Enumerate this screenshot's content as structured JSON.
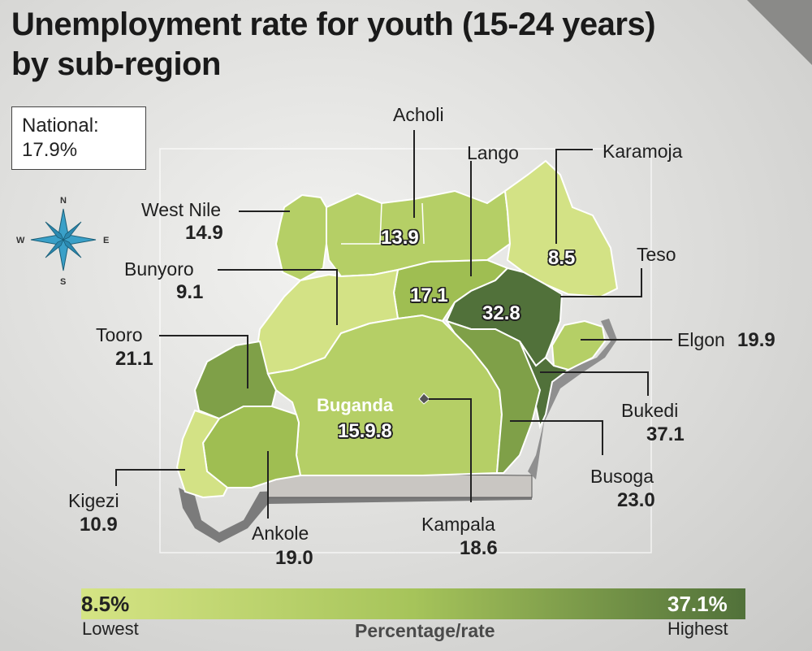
{
  "title_line1": "Unemployment rate for youth (15-24 years)",
  "title_line2": "by sub-region",
  "national": {
    "label": "National:",
    "value": "17.9%"
  },
  "compass": {
    "n": "N",
    "s": "S",
    "e": "E",
    "w": "W"
  },
  "colors": {
    "lightest": "#d3e285",
    "light": "#b5cf66",
    "mid": "#9fbe52",
    "darker": "#7fa048",
    "darkest": "#51713a"
  },
  "regions": {
    "acholi": {
      "name": "Acholi",
      "value": "13.9"
    },
    "lango": {
      "name": "Lango",
      "value": "17.1"
    },
    "karamoja": {
      "name": "Karamoja",
      "value": "8.5"
    },
    "west_nile": {
      "name": "West Nile",
      "value": "14.9"
    },
    "bunyoro": {
      "name": "Bunyoro",
      "value": "9.1"
    },
    "teso": {
      "name": "Teso",
      "value": "32.8"
    },
    "tooro": {
      "name": "Tooro",
      "value": "21.1"
    },
    "elgon": {
      "name": "Elgon",
      "value": "19.9"
    },
    "buganda": {
      "name": "Buganda",
      "value": "15.9.8"
    },
    "bukedi": {
      "name": "Bukedi",
      "value": "37.1"
    },
    "busoga": {
      "name": "Busoga",
      "value": "23.0"
    },
    "kigezi": {
      "name": "Kigezi",
      "value": "10.9"
    },
    "ankole": {
      "name": "Ankole",
      "value": "19.0"
    },
    "kampala": {
      "name": "Kampala",
      "value": "18.6"
    }
  },
  "legend": {
    "low_value": "8.5%",
    "high_value": "37.1%",
    "low_label": "Lowest",
    "high_label": "Highest",
    "axis_label": "Percentage/rate"
  }
}
